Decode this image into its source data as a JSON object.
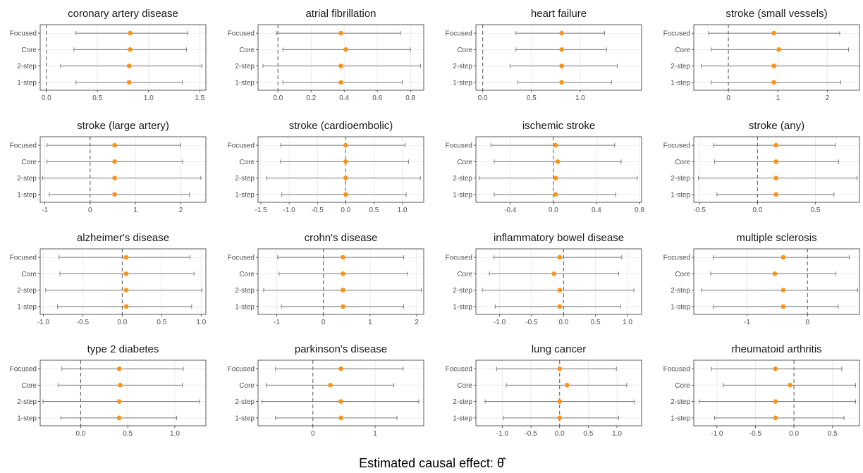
{
  "xlabel": "Estimated causal effect: θ̂",
  "colors": {
    "point": "#F7941D",
    "interval": "#7a7a7a",
    "zero_line": "#555555",
    "panel_border": "#333333",
    "grid": "#ebebeb"
  },
  "chart_data": [
    {
      "type": "scatter",
      "title": "coronary artery disease",
      "xlim": [
        -0.06,
        1.56
      ],
      "ticks": [
        0.0,
        0.5,
        1.0,
        1.5
      ],
      "tick_labels": [
        "0.0",
        "0.5",
        "1.0",
        "1.5"
      ],
      "categories": [
        "Focused",
        "Core",
        "2-step",
        "1-step"
      ],
      "points": [
        {
          "est": 0.82,
          "lo": 0.29,
          "hi": 1.38
        },
        {
          "est": 0.82,
          "lo": 0.27,
          "hi": 1.37
        },
        {
          "est": 0.81,
          "lo": 0.14,
          "hi": 1.52
        },
        {
          "est": 0.81,
          "lo": 0.29,
          "hi": 1.33
        }
      ]
    },
    {
      "type": "scatter",
      "title": "atrial fibrillation",
      "xlim": [
        -0.12,
        0.88
      ],
      "ticks": [
        0.0,
        0.2,
        0.4,
        0.6,
        0.8
      ],
      "tick_labels": [
        "0.0",
        "0.2",
        "0.4",
        "0.6",
        "0.8"
      ],
      "categories": [
        "Focused",
        "Core",
        "2-step",
        "1-step"
      ],
      "points": [
        {
          "est": 0.38,
          "lo": -0.01,
          "hi": 0.74
        },
        {
          "est": 0.41,
          "lo": 0.03,
          "hi": 0.8
        },
        {
          "est": 0.38,
          "lo": -0.09,
          "hi": 0.86
        },
        {
          "est": 0.38,
          "lo": 0.03,
          "hi": 0.75
        }
      ]
    },
    {
      "type": "scatter",
      "title": "heart failure",
      "xlim": [
        -0.07,
        1.63
      ],
      "ticks": [
        0.0,
        0.5,
        1.0
      ],
      "tick_labels": [
        "0.0",
        "0.5",
        "1.0"
      ],
      "categories": [
        "Focused",
        "Core",
        "2-step",
        "1-step"
      ],
      "points": [
        {
          "est": 0.81,
          "lo": 0.34,
          "hi": 1.25
        },
        {
          "est": 0.81,
          "lo": 0.34,
          "hi": 1.27
        },
        {
          "est": 0.81,
          "lo": 0.28,
          "hi": 1.38
        },
        {
          "est": 0.81,
          "lo": 0.36,
          "hi": 1.32
        }
      ]
    },
    {
      "type": "scatter",
      "title": "stroke (small vessels)",
      "xlim": [
        -0.7,
        2.65
      ],
      "ticks": [
        0,
        1,
        2
      ],
      "tick_labels": [
        "0",
        "1",
        "2"
      ],
      "categories": [
        "Focused",
        "Core",
        "2-step",
        "1-step"
      ],
      "points": [
        {
          "est": 0.92,
          "lo": -0.4,
          "hi": 2.25
        },
        {
          "est": 1.02,
          "lo": -0.35,
          "hi": 2.43
        },
        {
          "est": 0.92,
          "lo": -0.55,
          "hi": 2.65
        },
        {
          "est": 0.92,
          "lo": -0.35,
          "hi": 2.27
        }
      ]
    },
    {
      "type": "scatter",
      "title": "stroke (large artery)",
      "xlim": [
        -1.1,
        2.55
      ],
      "ticks": [
        -1,
        0,
        1,
        2
      ],
      "tick_labels": [
        "-1",
        "0",
        "1",
        "2"
      ],
      "categories": [
        "Focused",
        "Core",
        "2-step",
        "1-step"
      ],
      "points": [
        {
          "est": 0.54,
          "lo": -0.95,
          "hi": 1.99
        },
        {
          "est": 0.54,
          "lo": -0.95,
          "hi": 2.04
        },
        {
          "est": 0.54,
          "lo": -1.05,
          "hi": 2.44
        },
        {
          "est": 0.54,
          "lo": -0.9,
          "hi": 2.19
        }
      ]
    },
    {
      "type": "scatter",
      "title": "stroke (cardioembolic)",
      "xlim": [
        -1.55,
        1.38
      ],
      "ticks": [
        -1.5,
        -1.0,
        -0.5,
        0.0,
        0.5,
        1.0
      ],
      "tick_labels": [
        "-1.5",
        "-1.0",
        "-0.5",
        "0.0",
        "0.5",
        "1.0"
      ],
      "categories": [
        "Focused",
        "Core",
        "2-step",
        "1-step"
      ],
      "points": [
        {
          "est": 0.0,
          "lo": -1.15,
          "hi": 1.05
        },
        {
          "est": 0.0,
          "lo": -1.15,
          "hi": 1.11
        },
        {
          "est": 0.0,
          "lo": -1.4,
          "hi": 1.32
        },
        {
          "est": 0.0,
          "lo": -1.13,
          "hi": 1.07
        }
      ]
    },
    {
      "type": "scatter",
      "title": "ischemic stroke",
      "xlim": [
        -0.72,
        0.82
      ],
      "ticks": [
        -0.4,
        0.0,
        0.4,
        0.8
      ],
      "tick_labels": [
        "-0.4",
        "0.0",
        "0.4",
        "0.8"
      ],
      "categories": [
        "Focused",
        "Core",
        "2-step",
        "1-step"
      ],
      "points": [
        {
          "est": 0.02,
          "lo": -0.58,
          "hi": 0.57
        },
        {
          "est": 0.04,
          "lo": -0.55,
          "hi": 0.63
        },
        {
          "est": 0.02,
          "lo": -0.69,
          "hi": 0.78
        },
        {
          "est": 0.02,
          "lo": -0.55,
          "hi": 0.58
        }
      ]
    },
    {
      "type": "scatter",
      "title": "stroke (any)",
      "xlim": [
        -0.55,
        0.88
      ],
      "ticks": [
        -0.5,
        0.0,
        0.5
      ],
      "tick_labels": [
        "-0.5",
        "0.0",
        "0.5"
      ],
      "categories": [
        "Focused",
        "Core",
        "2-step",
        "1-step"
      ],
      "points": [
        {
          "est": 0.16,
          "lo": -0.38,
          "hi": 0.67
        },
        {
          "est": 0.16,
          "lo": -0.37,
          "hi": 0.7
        },
        {
          "est": 0.16,
          "lo": -0.51,
          "hi": 0.86
        },
        {
          "est": 0.16,
          "lo": -0.35,
          "hi": 0.66
        }
      ]
    },
    {
      "type": "scatter",
      "title": "alzheimer's disease",
      "xlim": [
        -1.04,
        1.06
      ],
      "ticks": [
        -1.0,
        -0.5,
        0.0,
        0.5,
        1.0
      ],
      "tick_labels": [
        "-1.0",
        "-0.5",
        "0.0",
        "0.5",
        "1.0"
      ],
      "categories": [
        "Focused",
        "Core",
        "2-step",
        "1-step"
      ],
      "points": [
        {
          "est": 0.05,
          "lo": -0.8,
          "hi": 0.86
        },
        {
          "est": 0.05,
          "lo": -0.79,
          "hi": 0.91
        },
        {
          "est": 0.05,
          "lo": -0.97,
          "hi": 1.01
        },
        {
          "est": 0.05,
          "lo": -0.82,
          "hi": 0.88
        }
      ]
    },
    {
      "type": "scatter",
      "title": "crohn's disease",
      "xlim": [
        -1.4,
        2.15
      ],
      "ticks": [
        -1,
        0,
        1,
        2
      ],
      "tick_labels": [
        "-1",
        "0",
        "1",
        "2"
      ],
      "categories": [
        "Focused",
        "Core",
        "2-step",
        "1-step"
      ],
      "points": [
        {
          "est": 0.42,
          "lo": -0.98,
          "hi": 1.72
        },
        {
          "est": 0.42,
          "lo": -0.95,
          "hi": 1.8
        },
        {
          "est": 0.42,
          "lo": -1.28,
          "hi": 2.1
        },
        {
          "est": 0.42,
          "lo": -0.9,
          "hi": 1.72
        }
      ]
    },
    {
      "type": "scatter",
      "title": "inflammatory bowel disease",
      "xlim": [
        -1.37,
        1.22
      ],
      "ticks": [
        -1.0,
        -0.5,
        0.0,
        0.5,
        1.0
      ],
      "tick_labels": [
        "-1.0",
        "-0.5",
        "0.0",
        "0.5",
        "1.0"
      ],
      "categories": [
        "Focused",
        "Core",
        "2-step",
        "1-step"
      ],
      "points": [
        {
          "est": -0.06,
          "lo": -1.09,
          "hi": 0.91
        },
        {
          "est": -0.15,
          "lo": -1.16,
          "hi": 0.86
        },
        {
          "est": -0.06,
          "lo": -1.27,
          "hi": 1.1
        },
        {
          "est": -0.06,
          "lo": -1.07,
          "hi": 0.89
        }
      ]
    },
    {
      "type": "scatter",
      "title": "multiple sclerosis",
      "xlim": [
        -1.88,
        0.86
      ],
      "ticks": [
        -1,
        0
      ],
      "tick_labels": [
        "-1",
        "0"
      ],
      "categories": [
        "Focused",
        "Core",
        "2-step",
        "1-step"
      ],
      "points": [
        {
          "est": -0.4,
          "lo": -1.56,
          "hi": 0.69
        },
        {
          "est": -0.54,
          "lo": -1.6,
          "hi": 0.47
        },
        {
          "est": -0.4,
          "lo": -1.75,
          "hi": 0.83
        },
        {
          "est": -0.4,
          "lo": -1.56,
          "hi": 0.51
        }
      ]
    },
    {
      "type": "scatter",
      "title": "type 2 diabetes",
      "xlim": [
        -0.43,
        1.33
      ],
      "ticks": [
        0.0,
        0.5,
        1.0
      ],
      "tick_labels": [
        "0.0",
        "0.5",
        "1.0"
      ],
      "categories": [
        "Focused",
        "Core",
        "2-step",
        "1-step"
      ],
      "points": [
        {
          "est": 0.41,
          "lo": -0.2,
          "hi": 1.09
        },
        {
          "est": 0.42,
          "lo": -0.24,
          "hi": 1.08
        },
        {
          "est": 0.41,
          "lo": -0.4,
          "hi": 1.26
        },
        {
          "est": 0.41,
          "lo": -0.21,
          "hi": 1.02
        }
      ]
    },
    {
      "type": "scatter",
      "title": "parkinson's disease",
      "xlim": [
        -0.88,
        1.78
      ],
      "ticks": [
        0,
        1
      ],
      "tick_labels": [
        "0",
        "1"
      ],
      "categories": [
        "Focused",
        "Core",
        "2-step",
        "1-step"
      ],
      "points": [
        {
          "est": 0.45,
          "lo": -0.6,
          "hi": 1.45
        },
        {
          "est": 0.28,
          "lo": -0.75,
          "hi": 1.3
        },
        {
          "est": 0.45,
          "lo": -0.82,
          "hi": 1.7
        },
        {
          "est": 0.45,
          "lo": -0.6,
          "hi": 1.35
        }
      ]
    },
    {
      "type": "scatter",
      "title": "lung cancer",
      "xlim": [
        -1.46,
        1.43
      ],
      "ticks": [
        -1.0,
        -0.5,
        0.0,
        0.5,
        1.0
      ],
      "tick_labels": [
        "-1.0",
        "-0.5",
        "0.0",
        "0.5",
        "1.0"
      ],
      "categories": [
        "Focused",
        "Core",
        "2-step",
        "1-step"
      ],
      "points": [
        {
          "est": 0.0,
          "lo": -1.1,
          "hi": 0.99
        },
        {
          "est": 0.13,
          "lo": -0.93,
          "hi": 1.17
        },
        {
          "est": 0.0,
          "lo": -1.3,
          "hi": 1.3
        },
        {
          "est": 0.0,
          "lo": -0.98,
          "hi": 1.03
        }
      ]
    },
    {
      "type": "scatter",
      "title": "rheumatoid arthritis",
      "xlim": [
        -1.3,
        0.85
      ],
      "ticks": [
        -1.0,
        -0.5,
        0.0,
        0.5
      ],
      "tick_labels": [
        "-1.0",
        "-0.5",
        "0.0",
        "0.5"
      ],
      "categories": [
        "Focused",
        "Core",
        "2-step",
        "1-step"
      ],
      "points": [
        {
          "est": -0.24,
          "lo": -1.07,
          "hi": 0.62
        },
        {
          "est": -0.05,
          "lo": -0.92,
          "hi": 0.8
        },
        {
          "est": -0.24,
          "lo": -1.23,
          "hi": 0.8
        },
        {
          "est": -0.24,
          "lo": -1.03,
          "hi": 0.65
        }
      ]
    }
  ]
}
